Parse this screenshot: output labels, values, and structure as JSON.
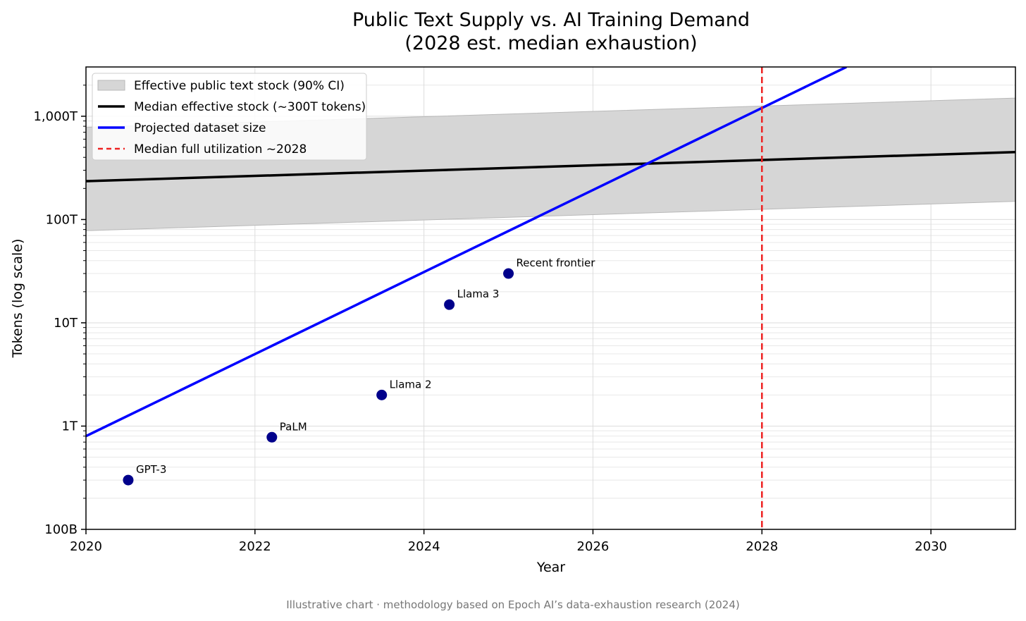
{
  "chart_data": {
    "type": "line",
    "title_lines": [
      "Public Text Supply vs. AI Training Demand",
      "(2028 est. median exhaustion)"
    ],
    "xlabel": "Year",
    "ylabel": "Tokens (log scale)",
    "xlim": [
      2020,
      2031
    ],
    "ylim": [
      100000000000.0,
      3000000000000000.0
    ],
    "yscale": "log",
    "grid": true,
    "legend_position": "top-left",
    "x_ticks": [
      {
        "value": 2020,
        "label": "2020"
      },
      {
        "value": 2022,
        "label": "2022"
      },
      {
        "value": 2024,
        "label": "2024"
      },
      {
        "value": 2026,
        "label": "2026"
      },
      {
        "value": 2028,
        "label": "2028"
      },
      {
        "value": 2030,
        "label": "2030"
      }
    ],
    "y_ticks": [
      {
        "value": 100000000000.0,
        "label": "100B"
      },
      {
        "value": 1000000000000.0,
        "label": "1T"
      },
      {
        "value": 10000000000000.0,
        "label": "10T"
      },
      {
        "value": 100000000000000.0,
        "label": "100T"
      },
      {
        "value": 1000000000000000.0,
        "label": "1,000T"
      }
    ],
    "series": [
      {
        "name": "Effective public text stock (90% CI)",
        "kind": "band",
        "color": "#d6d6d6",
        "edge_color": "#b8b8b8",
        "x": [
          2020,
          2031
        ],
        "lower": [
          78000000000000.0,
          150000000000000.0
        ],
        "upper": [
          780000000000000.0,
          1500000000000000.0
        ]
      },
      {
        "name": "Median effective stock (~300T tokens)",
        "kind": "line",
        "color": "#000000",
        "x": [
          2020,
          2031
        ],
        "y": [
          235000000000000.0,
          450000000000000.0
        ]
      },
      {
        "name": "Projected dataset size",
        "kind": "line",
        "color": "#0000ff",
        "x": [
          2020,
          2029
        ],
        "y": [
          800000000000.0,
          3000000000000000.0
        ]
      },
      {
        "name": "Median full utilization ~2028",
        "kind": "vline",
        "color": "#ee2222",
        "x": 2028
      }
    ],
    "points": {
      "color": "#00008b",
      "items": [
        {
          "label": "GPT-3",
          "x": 2020.5,
          "y": 300000000000.0
        },
        {
          "label": "PaLM",
          "x": 2022.2,
          "y": 780000000000.0
        },
        {
          "label": "Llama 2",
          "x": 2023.5,
          "y": 2000000000000.0
        },
        {
          "label": "Llama 3",
          "x": 2024.3,
          "y": 15000000000000.0
        },
        {
          "label": "Recent frontier",
          "x": 2025.0,
          "y": 30000000000000.0
        }
      ]
    }
  },
  "footer": "Illustrative chart · methodology based on Epoch AI’s data-exhaustion research (2024)"
}
